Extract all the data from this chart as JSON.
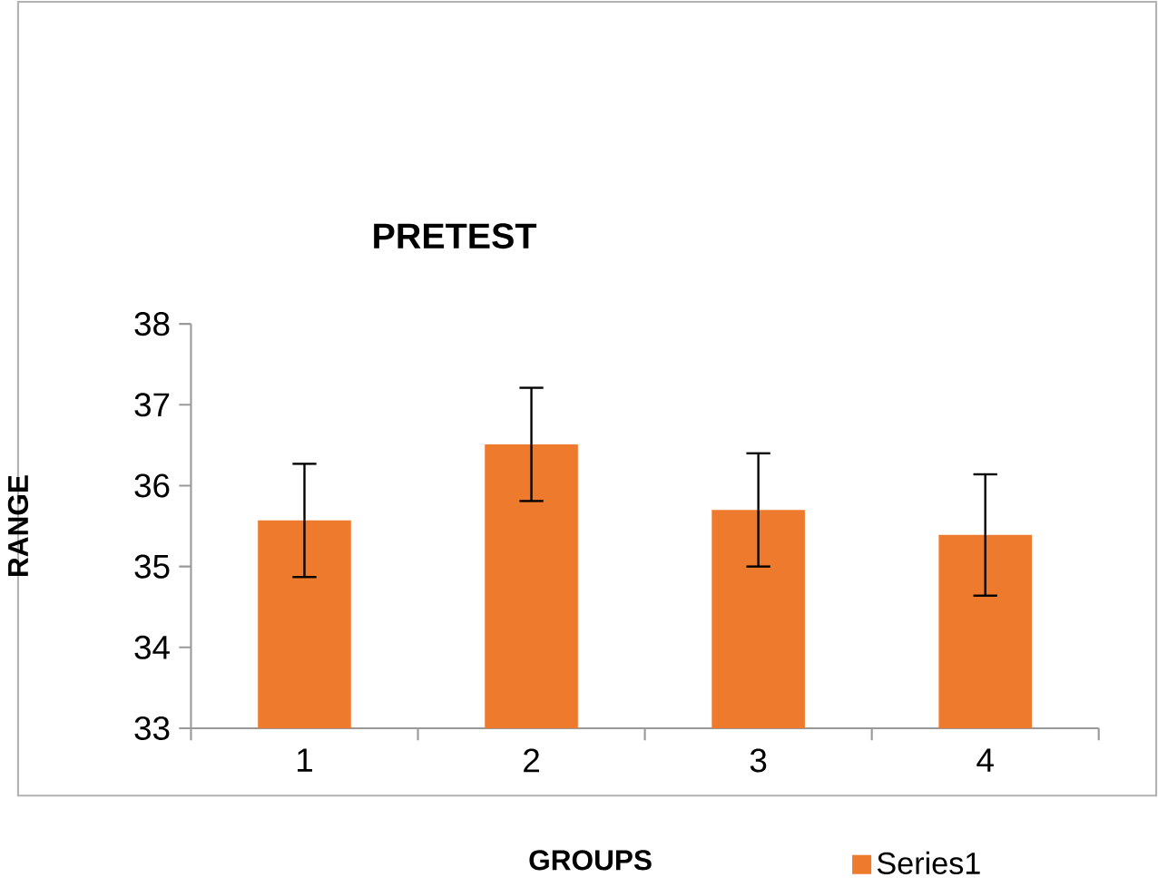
{
  "chart_data": {
    "type": "bar",
    "title": "PRETEST",
    "xlabel": "GROUPS",
    "ylabel": "RANGE",
    "categories": [
      "1",
      "2",
      "3",
      "4"
    ],
    "series": [
      {
        "name": "Series1",
        "color": "#ee7a2e",
        "values": [
          35.57,
          36.51,
          35.7,
          35.39
        ],
        "errors": [
          0.7,
          0.7,
          0.7,
          0.75
        ]
      }
    ],
    "ylim": [
      33,
      38
    ],
    "yticks": [
      33,
      34,
      35,
      36,
      37,
      38
    ],
    "grid": false,
    "legend": "bottom"
  }
}
